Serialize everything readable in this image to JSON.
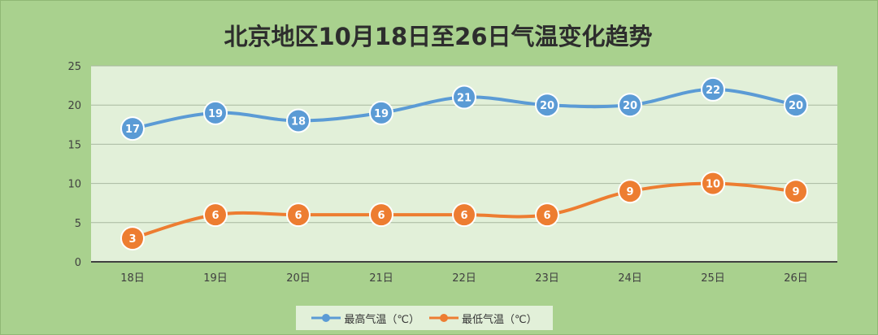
{
  "title": "北京地区10月18日至26日气温变化趋势",
  "colors": {
    "high": "#5b9bd5",
    "low": "#ed7d31",
    "plot_bg": "#e2f0d9",
    "frame_bg": "#a9d18e"
  },
  "chart_data": {
    "type": "line",
    "title": "北京地区10月18日至26日气温变化趋势",
    "categories": [
      "18日",
      "19日",
      "20日",
      "21日",
      "22日",
      "23日",
      "24日",
      "25日",
      "26日"
    ],
    "series": [
      {
        "name": "最高气温（℃）",
        "values": [
          17,
          19,
          18,
          19,
          21,
          20,
          20,
          22,
          20
        ]
      },
      {
        "name": "最低气温（℃）",
        "values": [
          3,
          6,
          6,
          6,
          6,
          6,
          9,
          10,
          9
        ]
      }
    ],
    "ylim": [
      0,
      25
    ],
    "yticks": [
      "0",
      "5",
      "10",
      "15",
      "20",
      "25"
    ],
    "grid": true,
    "smooth": true,
    "data_labels": true,
    "legend_position": "bottom"
  }
}
